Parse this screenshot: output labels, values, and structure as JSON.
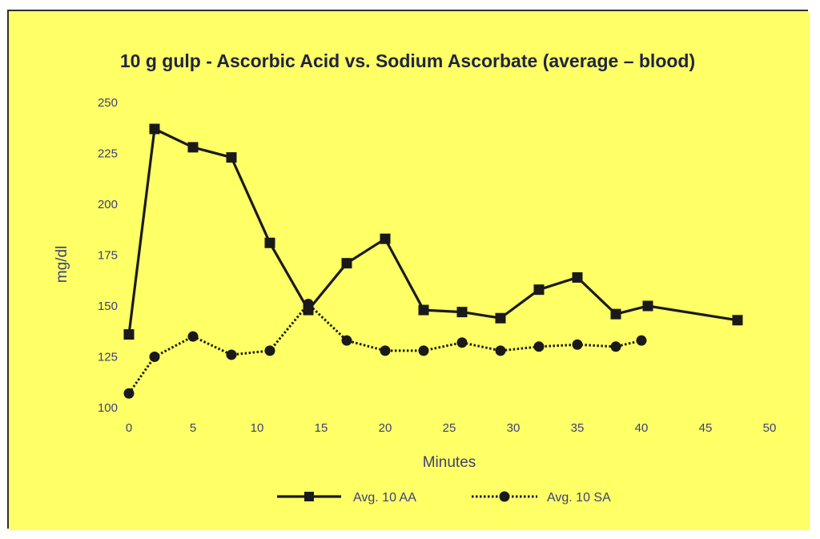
{
  "colors": {
    "background": "#FFFF66",
    "border": "#2f2f2f",
    "series_line": "#1a1a1a",
    "text": "#3c3f78",
    "title": "#1f2440"
  },
  "chart_data": {
    "type": "line",
    "title": "10 g gulp - Ascorbic Acid vs. Sodium Ascorbate (average – blood)",
    "xlabel": "Minutes",
    "ylabel": "mg/dl",
    "xlim": [
      0,
      50
    ],
    "ylim": [
      100,
      250
    ],
    "x_ticks": [
      "0",
      "5",
      "10",
      "15",
      "20",
      "25",
      "30",
      "35",
      "40",
      "45",
      "50"
    ],
    "y_ticks": [
      "100",
      "125",
      "150",
      "175",
      "200",
      "225",
      "250"
    ],
    "grid": false,
    "legend_position": "bottom",
    "series": [
      {
        "name": "Avg. 10 AA",
        "marker": "square",
        "line_style": "solid",
        "x": [
          0,
          2,
          5,
          8,
          11,
          14,
          17,
          20,
          23,
          26,
          29,
          32,
          35,
          38,
          40.5,
          47.5
        ],
        "y": [
          136,
          237,
          228,
          223,
          181,
          148,
          171,
          183,
          148,
          147,
          144,
          158,
          164,
          146,
          150,
          143
        ]
      },
      {
        "name": "Avg. 10 SA",
        "marker": "circle",
        "line_style": "dotted",
        "x": [
          0,
          2,
          5,
          8,
          11,
          14,
          17,
          20,
          23,
          26,
          29,
          32,
          35,
          38,
          40
        ],
        "y": [
          107,
          125,
          135,
          126,
          128,
          151,
          133,
          128,
          128,
          132,
          128,
          130,
          131,
          130,
          133
        ]
      }
    ]
  }
}
